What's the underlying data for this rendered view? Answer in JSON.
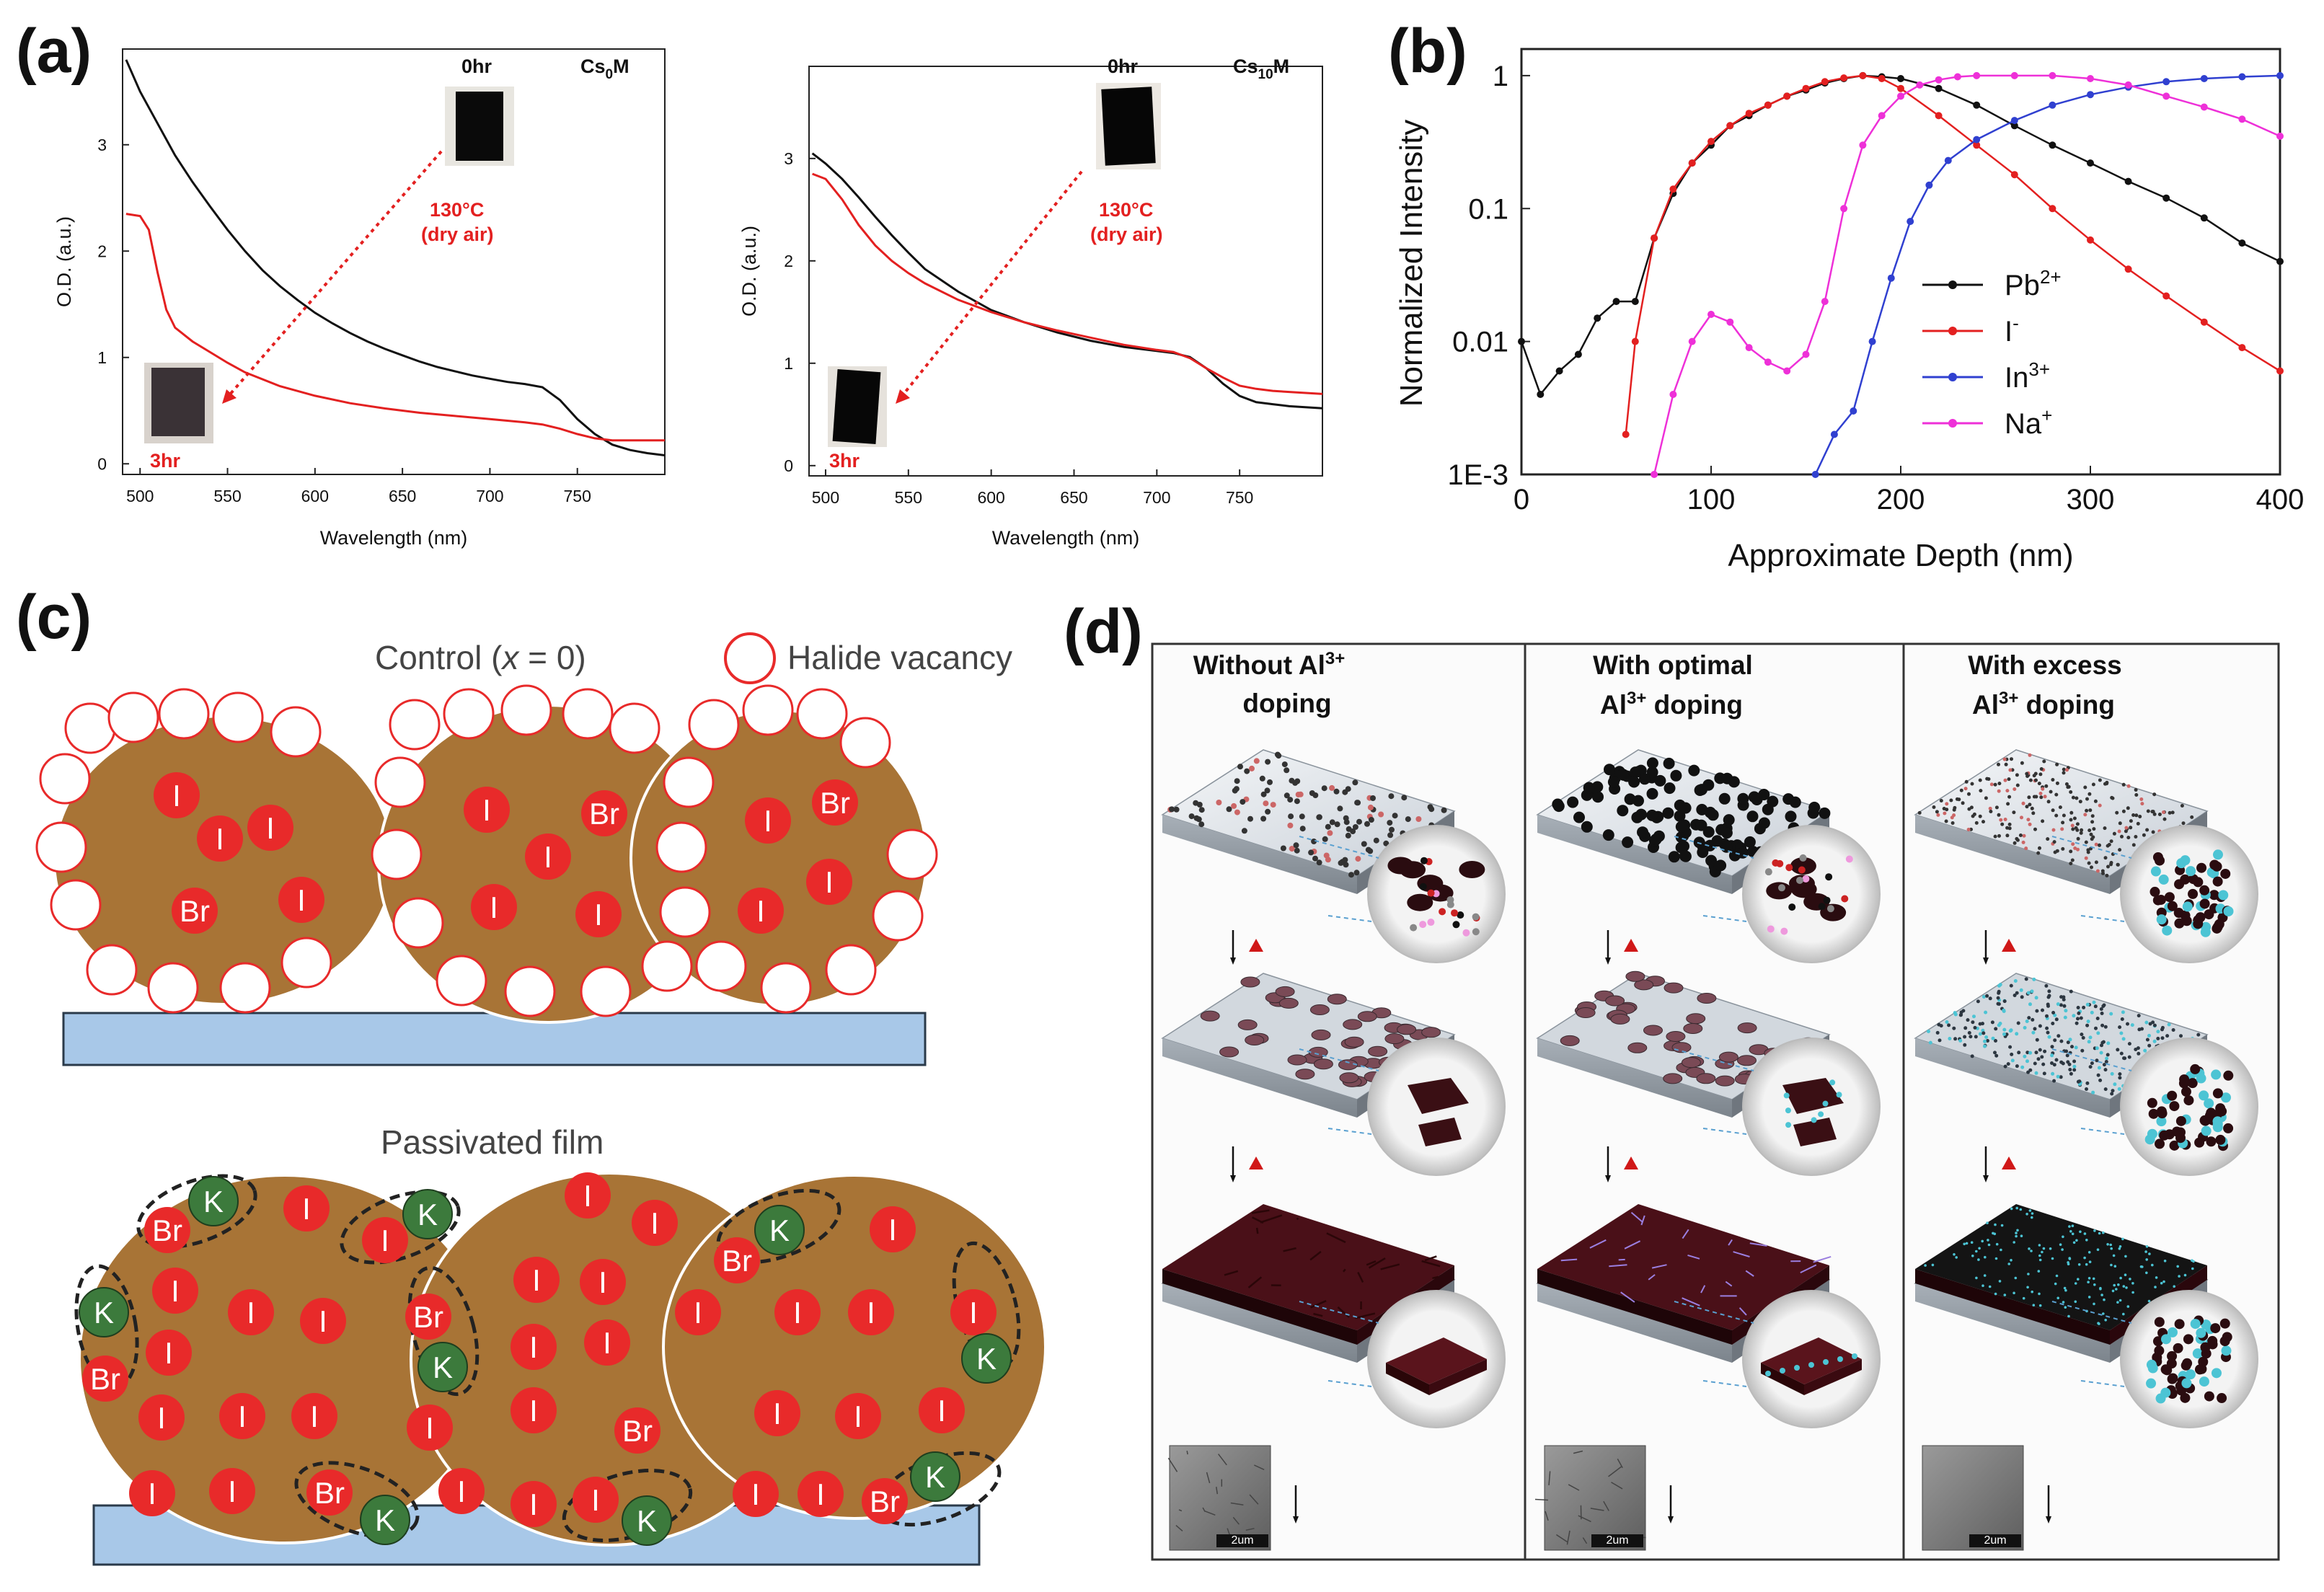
{
  "panel_labels": [
    "(a)",
    "(b)",
    "(c)",
    "(d)"
  ],
  "chart_data": [
    {
      "type": "line",
      "panel": "(a) left",
      "xlabel": "Wavelength (nm)",
      "ylabel": "O.D. (a.u.)",
      "xlim": [
        490,
        800
      ],
      "ylim": [
        -0.1,
        3.9
      ],
      "xticks": [
        "500",
        "550",
        "600",
        "650",
        "700",
        "750"
      ],
      "yticks": [
        "0",
        "1",
        "2",
        "3"
      ],
      "corner_label": "Cs0M",
      "series": [
        {
          "name": "0hr",
          "color": "#111111",
          "x": [
            492,
            500,
            510,
            520,
            530,
            540,
            550,
            560,
            570,
            580,
            590,
            600,
            610,
            620,
            630,
            640,
            650,
            660,
            670,
            680,
            690,
            700,
            710,
            720,
            730,
            740,
            750,
            760,
            770,
            780,
            790,
            800
          ],
          "y": [
            3.8,
            3.5,
            3.2,
            2.9,
            2.65,
            2.42,
            2.2,
            2.0,
            1.82,
            1.67,
            1.54,
            1.42,
            1.32,
            1.23,
            1.15,
            1.08,
            1.02,
            0.96,
            0.91,
            0.87,
            0.83,
            0.8,
            0.77,
            0.75,
            0.72,
            0.6,
            0.42,
            0.28,
            0.18,
            0.13,
            0.1,
            0.08
          ]
        },
        {
          "name": "3hr",
          "color": "#e32020",
          "x": [
            492,
            500,
            505,
            510,
            515,
            520,
            530,
            540,
            550,
            560,
            580,
            600,
            620,
            640,
            660,
            680,
            700,
            720,
            730,
            740,
            750,
            760,
            770,
            780,
            800
          ],
          "y": [
            2.35,
            2.33,
            2.2,
            1.8,
            1.45,
            1.28,
            1.15,
            1.05,
            0.95,
            0.86,
            0.73,
            0.64,
            0.57,
            0.52,
            0.48,
            0.45,
            0.42,
            0.39,
            0.37,
            0.33,
            0.28,
            0.24,
            0.22,
            0.22,
            0.22
          ]
        }
      ],
      "annotations": {
        "time_start": "0hr",
        "time_end": "3hr",
        "temperature": "130°C",
        "atmosphere": "(dry air)"
      }
    },
    {
      "type": "line",
      "panel": "(a) right",
      "xlabel": "Wavelength (nm)",
      "ylabel": "O.D. (a.u.)",
      "xlim": [
        490,
        800
      ],
      "ylim": [
        -0.1,
        3.9
      ],
      "xticks": [
        "500",
        "550",
        "600",
        "650",
        "700",
        "750"
      ],
      "yticks": [
        "0",
        "1",
        "2",
        "3"
      ],
      "corner_label": "Cs10M",
      "series": [
        {
          "name": "0hr",
          "color": "#111111",
          "x": [
            492,
            500,
            510,
            520,
            530,
            540,
            550,
            560,
            580,
            600,
            620,
            640,
            660,
            680,
            700,
            710,
            720,
            730,
            740,
            750,
            760,
            770,
            780,
            800
          ],
          "y": [
            3.05,
            2.95,
            2.8,
            2.62,
            2.43,
            2.25,
            2.08,
            1.92,
            1.7,
            1.52,
            1.4,
            1.3,
            1.22,
            1.16,
            1.12,
            1.1,
            1.06,
            0.95,
            0.8,
            0.68,
            0.62,
            0.6,
            0.58,
            0.56
          ]
        },
        {
          "name": "3hr",
          "color": "#e32020",
          "x": [
            492,
            500,
            510,
            520,
            530,
            540,
            550,
            560,
            580,
            600,
            620,
            640,
            660,
            680,
            700,
            710,
            720,
            730,
            740,
            750,
            760,
            770,
            780,
            800
          ],
          "y": [
            2.85,
            2.8,
            2.6,
            2.35,
            2.15,
            2.0,
            1.88,
            1.78,
            1.62,
            1.5,
            1.4,
            1.32,
            1.25,
            1.18,
            1.13,
            1.11,
            1.05,
            0.95,
            0.86,
            0.78,
            0.75,
            0.73,
            0.72,
            0.7
          ]
        }
      ],
      "annotations": {
        "time_start": "0hr",
        "time_end": "3hr",
        "temperature": "130°C",
        "atmosphere": "(dry air)"
      }
    },
    {
      "type": "line",
      "panel": "(b)",
      "xlabel": "Approximate Depth (nm)",
      "ylabel": "Normalized Intensity",
      "xlim": [
        0,
        400
      ],
      "ylim_log10": [
        -3,
        0.2
      ],
      "xticks": [
        "0",
        "100",
        "200",
        "300",
        "400"
      ],
      "yticks": [
        "1E-3",
        "0.01",
        "0.1",
        "1"
      ],
      "ytick_values": [
        0.001,
        0.01,
        0.1,
        1
      ],
      "series": [
        {
          "name": "Pb2+",
          "label_base": "Pb",
          "label_sup": "2+",
          "color": "#111111",
          "x": [
            0,
            10,
            20,
            30,
            40,
            50,
            60,
            70,
            80,
            90,
            100,
            110,
            120,
            130,
            140,
            150,
            160,
            170,
            180,
            190,
            200,
            220,
            240,
            260,
            280,
            300,
            320,
            340,
            360,
            380,
            400
          ],
          "y": [
            0.01,
            0.004,
            0.006,
            0.008,
            0.015,
            0.02,
            0.02,
            0.06,
            0.13,
            0.22,
            0.3,
            0.42,
            0.5,
            0.6,
            0.7,
            0.78,
            0.88,
            0.95,
            1.0,
            0.98,
            0.95,
            0.8,
            0.6,
            0.42,
            0.3,
            0.22,
            0.16,
            0.12,
            0.085,
            0.055,
            0.04
          ]
        },
        {
          "name": "I-",
          "label_base": "I",
          "label_sup": "-",
          "color": "#e32020",
          "x": [
            55,
            60,
            70,
            80,
            90,
            100,
            110,
            120,
            130,
            140,
            150,
            160,
            170,
            180,
            190,
            200,
            220,
            240,
            260,
            280,
            300,
            320,
            340,
            360,
            380,
            400
          ],
          "y": [
            0.002,
            0.01,
            0.06,
            0.14,
            0.22,
            0.32,
            0.42,
            0.52,
            0.6,
            0.7,
            0.8,
            0.9,
            0.96,
            1.0,
            0.95,
            0.8,
            0.5,
            0.3,
            0.18,
            0.1,
            0.058,
            0.035,
            0.022,
            0.014,
            0.009,
            0.006
          ]
        },
        {
          "name": "In3+",
          "label_base": "In",
          "label_sup": "3+",
          "color": "#3040d0",
          "x": [
            155,
            165,
            175,
            185,
            195,
            205,
            215,
            225,
            240,
            260,
            280,
            300,
            320,
            340,
            360,
            380,
            400
          ],
          "y": [
            0.001,
            0.002,
            0.003,
            0.01,
            0.03,
            0.08,
            0.15,
            0.23,
            0.33,
            0.46,
            0.6,
            0.72,
            0.82,
            0.9,
            0.95,
            0.98,
            1.0
          ]
        },
        {
          "name": "Na+",
          "label_base": "Na",
          "label_sup": "+",
          "color": "#ee30d8",
          "x": [
            70,
            80,
            90,
            100,
            110,
            120,
            130,
            140,
            150,
            160,
            170,
            180,
            190,
            200,
            210,
            220,
            230,
            240,
            260,
            280,
            300,
            320,
            340,
            360,
            380,
            400
          ],
          "y": [
            0.001,
            0.004,
            0.01,
            0.016,
            0.014,
            0.009,
            0.007,
            0.006,
            0.008,
            0.02,
            0.1,
            0.3,
            0.5,
            0.7,
            0.85,
            0.93,
            0.98,
            1.0,
            1.0,
            1.0,
            0.95,
            0.85,
            0.7,
            0.58,
            0.47,
            0.35
          ]
        }
      ]
    }
  ],
  "panel_c": {
    "title_prefix": "Control (",
    "title_var": "x",
    "title_suffix": " = 0)",
    "legend_label": "Halide vacancy",
    "bottom_title": "Passivated film",
    "ion_i": "I",
    "ion_br": "Br",
    "ion_k": "K",
    "colors": {
      "grain": "#a87436",
      "ion": "#e82a2a",
      "substrate": "#a8c8e8",
      "potassium": "#3c7a3c"
    }
  },
  "panel_d": {
    "columns": [
      {
        "line1": "Without Al",
        "sup": "3+",
        "line2": "doping"
      },
      {
        "line1": "With optimal",
        "line2a": "Al",
        "sup": "3+",
        "line2b": " doping"
      },
      {
        "line1": "With excess",
        "line2a": "Al",
        "sup": "3+",
        "line2b": " doping"
      }
    ],
    "scale_bar": "2um"
  }
}
